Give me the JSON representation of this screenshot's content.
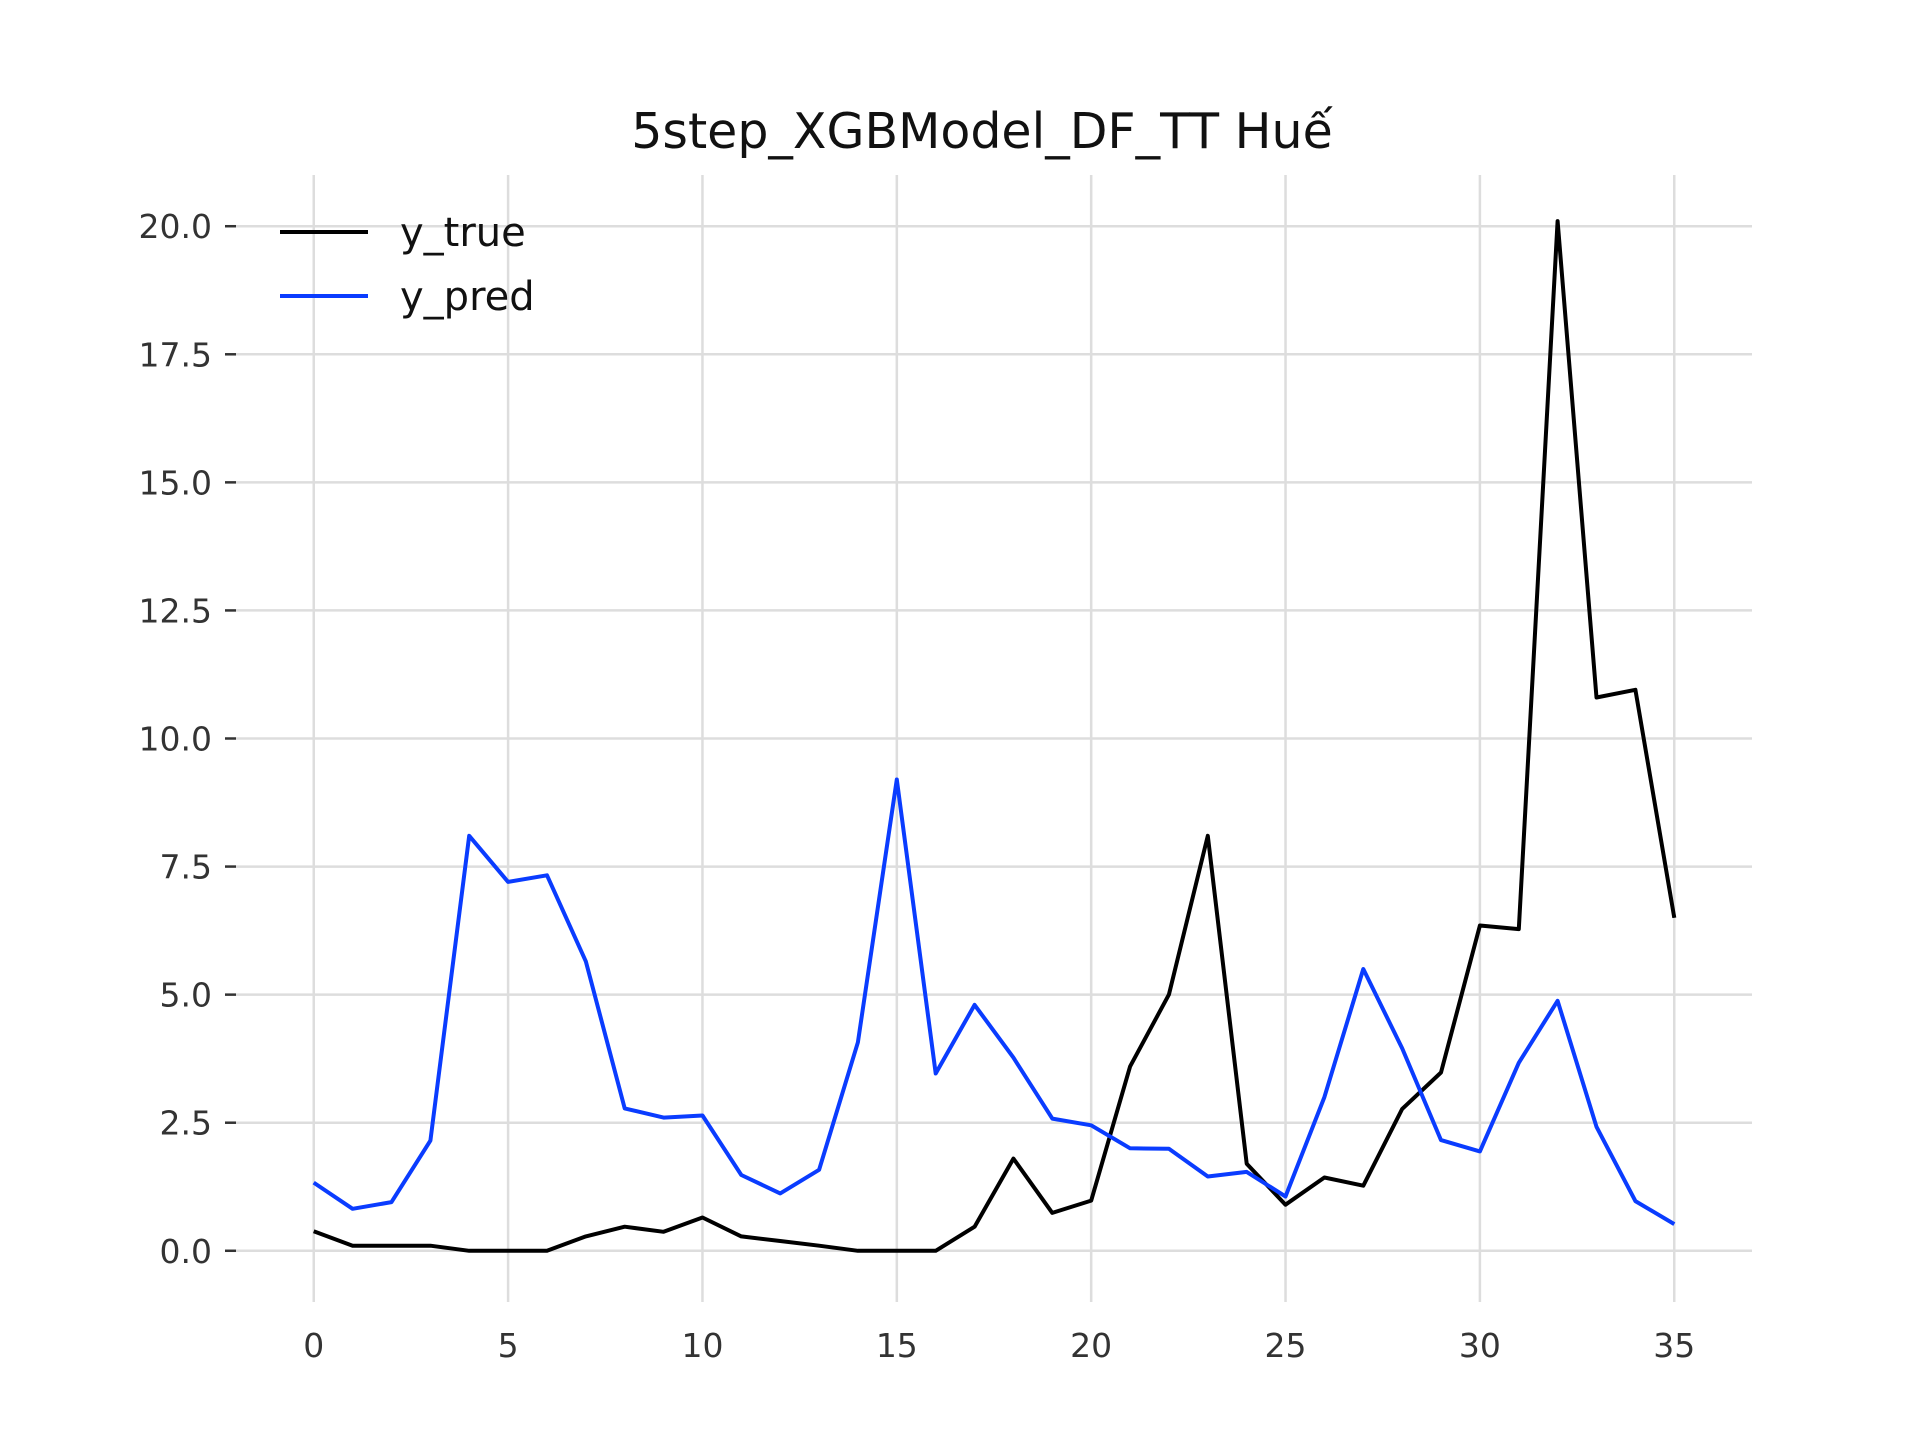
{
  "chart_data": {
    "type": "line",
    "title": "5step_XGBModel_DF_TT Huế",
    "xlabel": "",
    "ylabel": "",
    "xlim": [
      -2,
      37
    ],
    "ylim": [
      -1.0,
      21.0
    ],
    "x_ticks": [
      0,
      5,
      10,
      15,
      20,
      25,
      30,
      35
    ],
    "y_ticks": [
      0.0,
      2.5,
      5.0,
      7.5,
      10.0,
      12.5,
      15.0,
      17.5,
      20.0
    ],
    "grid": true,
    "legend_position": "top-left",
    "x": [
      0,
      1,
      2,
      3,
      4,
      5,
      6,
      7,
      8,
      9,
      10,
      11,
      12,
      13,
      14,
      15,
      16,
      17,
      18,
      19,
      20,
      21,
      22,
      23,
      24,
      25,
      26,
      27,
      28,
      29,
      30,
      31,
      32,
      33,
      34,
      35
    ],
    "series": [
      {
        "name": "y_true",
        "color": "#000000",
        "values": [
          0.38,
          0.1,
          0.1,
          0.1,
          0.0,
          0.0,
          0.0,
          0.28,
          0.47,
          0.37,
          0.65,
          0.28,
          0.19,
          0.1,
          0.0,
          0.0,
          0.0,
          0.47,
          1.8,
          0.74,
          0.98,
          3.6,
          5.0,
          8.1,
          1.7,
          0.9,
          1.43,
          1.27,
          2.77,
          3.48,
          6.35,
          6.28,
          20.1,
          10.8,
          10.95,
          6.5
        ]
      },
      {
        "name": "y_pred",
        "color": "#0a3cff",
        "values": [
          1.33,
          0.82,
          0.95,
          2.15,
          8.1,
          7.2,
          7.33,
          5.65,
          2.78,
          2.6,
          2.64,
          1.48,
          1.12,
          1.58,
          4.07,
          9.2,
          3.46,
          4.8,
          3.77,
          2.58,
          2.45,
          2.0,
          1.99,
          1.45,
          1.54,
          1.06,
          3.0,
          5.5,
          3.95,
          2.16,
          1.94,
          3.67,
          4.88,
          2.42,
          0.97,
          0.52
        ]
      }
    ]
  }
}
